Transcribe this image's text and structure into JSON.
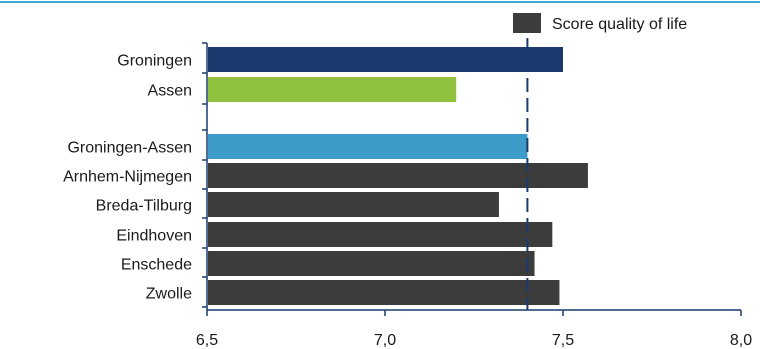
{
  "chart_data": {
    "type": "bar",
    "orientation": "horizontal",
    "categories": [
      "Groningen",
      "Assen",
      "Groningen-Assen",
      "Arnhem-Nijmegen",
      "Breda-Tilburg",
      "Eindhoven",
      "Enschede",
      "Zwolle"
    ],
    "values": [
      7.5,
      7.2,
      7.4,
      7.57,
      7.32,
      7.47,
      7.42,
      7.49
    ],
    "bar_colors": [
      "#1c3a6e",
      "#8fc13e",
      "#3d9bc9",
      "#3c3c3c",
      "#3c3c3c",
      "#3c3c3c",
      "#3c3c3c",
      "#3c3c3c"
    ],
    "series": [
      {
        "name": "Score quality of life",
        "color": "#3c3c3c"
      }
    ],
    "xlim": [
      6.5,
      8.0
    ],
    "xticks": [
      "6,5",
      "7,0",
      "7,5",
      "8,0"
    ],
    "reference_line": 7.4,
    "legend_position": "top-right",
    "grid": false,
    "top_rule_color": "#3fa8d8"
  }
}
